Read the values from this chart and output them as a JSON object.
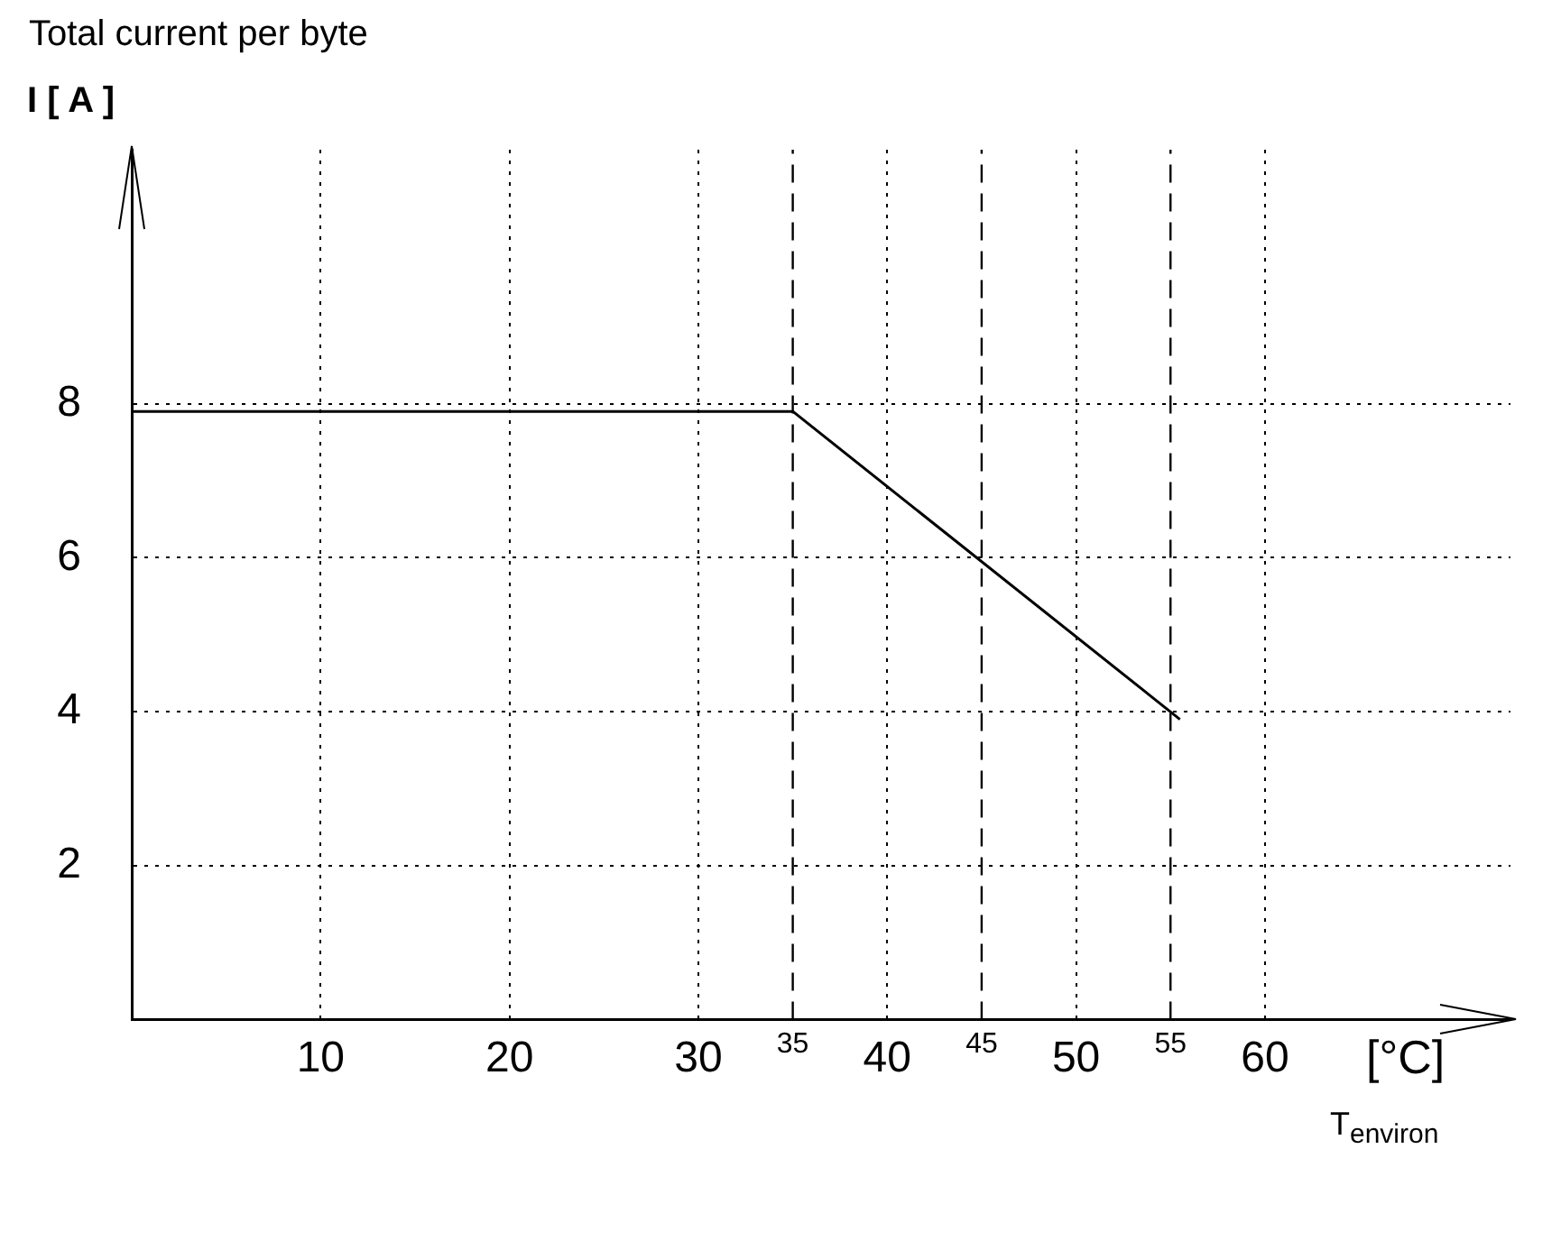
{
  "chart_data": {
    "type": "line",
    "title": "Total current per byte",
    "ylabel": "I [ A ]",
    "xlabel": "[°C]",
    "annotations": [
      "T$_{environ}$"
    ],
    "x": [
      0,
      35,
      55.5
    ],
    "series": [
      {
        "color": "#000000",
        "values": [
          7.9,
          7.9,
          3.9
        ]
      }
    ],
    "xlim": [
      0,
      73
    ],
    "xticks": [
      10,
      20,
      30,
      40,
      50,
      60
    ],
    "ylim": [
      0,
      11.3
    ],
    "yticks": [
      2,
      4,
      6,
      8
    ],
    "ref_lines": [
      {
        "axis": "x",
        "value": 35,
        "label": "35",
        "line_style": "dashed"
      },
      {
        "axis": "x",
        "value": 45,
        "label": "45",
        "line_style": "dashed"
      },
      {
        "axis": "x",
        "value": 55,
        "label": "55",
        "line_style": "dashed"
      }
    ],
    "grid": true,
    "legend": false,
    "marker": "none",
    "line_style": "solid"
  }
}
